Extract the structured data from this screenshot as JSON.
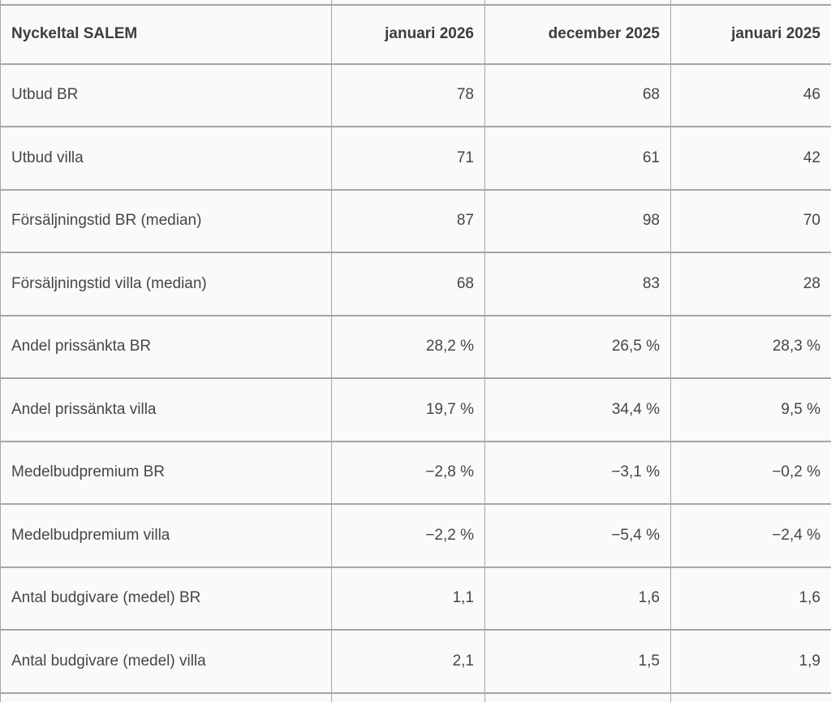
{
  "table": {
    "title": "Nyckeltal SALEM",
    "columns": [
      {
        "label": "Nyckeltal SALEM"
      },
      {
        "label": "januari 2026"
      },
      {
        "label": "december 2025"
      },
      {
        "label": "januari 2025"
      }
    ],
    "rows": [
      {
        "label": "Utbud BR",
        "values": [
          "78",
          "68",
          "46"
        ]
      },
      {
        "label": "Utbud villa",
        "values": [
          "71",
          "61",
          "42"
        ]
      },
      {
        "label": "Försäljningstid BR (median)",
        "values": [
          "87",
          "98",
          "70"
        ]
      },
      {
        "label": "Försäljningstid villa (median)",
        "values": [
          "68",
          "83",
          "28"
        ]
      },
      {
        "label": "Andel prissänkta BR",
        "values": [
          "28,2 %",
          "26,5 %",
          "28,3 %"
        ]
      },
      {
        "label": "Andel prissänkta villa",
        "values": [
          "19,7 %",
          "34,4 %",
          "9,5 %"
        ]
      },
      {
        "label": "Medelbudpremium BR",
        "values": [
          "−2,8 %",
          "−3,1 %",
          "−0,2 %"
        ]
      },
      {
        "label": "Medelbudpremium villa",
        "values": [
          "−2,2 %",
          "−5,4 %",
          "−2,4 %"
        ]
      },
      {
        "label": "Antal budgivare (medel) BR",
        "values": [
          "1,1",
          "1,6",
          "1,6"
        ]
      },
      {
        "label": "Antal budgivare (medel) villa",
        "values": [
          "2,1",
          "1,5",
          "1,9"
        ]
      }
    ]
  },
  "colors": {
    "cell_background": "#fafafa",
    "border": "#a6a6a6",
    "text": "#464646",
    "header_text": "#3d3d3d"
  }
}
